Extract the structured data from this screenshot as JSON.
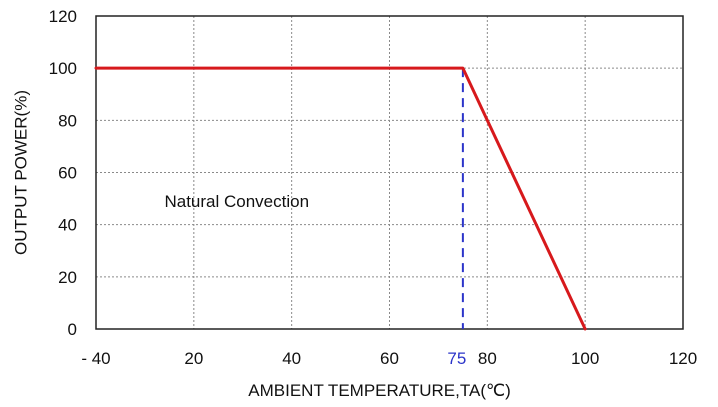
{
  "chart_data": {
    "type": "line",
    "title": "",
    "xlabel": "AMBIENT TEMPERATURE,TA(℃)",
    "ylabel": "OUTPUT POWER(%)",
    "x_ticks": [
      "- 40",
      "20",
      "40",
      "60",
      "80",
      "100",
      "120"
    ],
    "x_tick_values": [
      0,
      20,
      40,
      60,
      80,
      100,
      120
    ],
    "y_ticks": [
      "0",
      "20",
      "40",
      "60",
      "80",
      "100",
      "120"
    ],
    "y_tick_values": [
      0,
      20,
      40,
      60,
      80,
      100,
      120
    ],
    "xlim": [
      0,
      120
    ],
    "ylim": [
      0,
      120
    ],
    "grid": true,
    "series": [
      {
        "x": [
          0,
          75,
          80,
          100
        ],
        "y": [
          100,
          100,
          80,
          0
        ],
        "color": "#d7191c"
      }
    ],
    "markers": [
      {
        "label": "75",
        "x": 75,
        "y": 100,
        "color": "#2b34c9"
      }
    ],
    "annotations": [
      {
        "text": "Natural Convection",
        "x": 14,
        "y": 49
      }
    ]
  }
}
